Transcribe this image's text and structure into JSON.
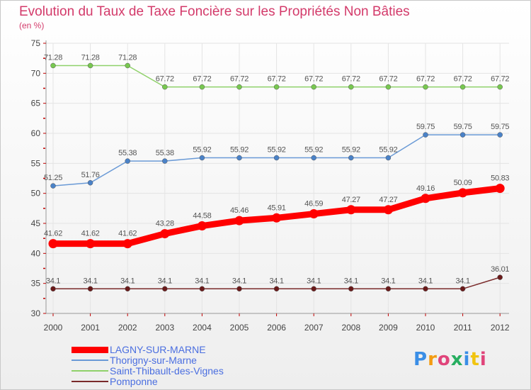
{
  "title": "Evolution du Taux de Taxe Foncière sur les Propriétés Non Bâties",
  "unit": "(en %)",
  "logo_text": "Proxiti",
  "colors": {
    "title": "#d33a6a",
    "axis": "#c00000",
    "grid": "#e4e4e4",
    "legend_text": "#4a6ee0"
  },
  "chart_data": {
    "type": "line",
    "title": "Evolution du Taux de Taxe Foncière sur les Propriétés Non Bâties",
    "ylabel": "(en %)",
    "xlabel": "",
    "x": [
      "2000",
      "2001",
      "2002",
      "2003",
      "2004",
      "2005",
      "2006",
      "2007",
      "2008",
      "2009",
      "2010",
      "2011",
      "2012"
    ],
    "ylim": [
      30,
      75
    ],
    "yticks": [
      30,
      35,
      40,
      45,
      50,
      55,
      60,
      65,
      70,
      75
    ],
    "grid": true,
    "legend_position": "bottom-left",
    "series": [
      {
        "name": "Saint-Thibault-des-Vignes",
        "color": "#8fd16a",
        "marker": "#78c850",
        "labels": [
          "71.28",
          "71.28",
          "71.28",
          "67.72",
          "67.72",
          "67.72",
          "67.72",
          "67.72",
          "67.72",
          "67.72",
          "67.72",
          "67.72",
          "67.72"
        ],
        "values": [
          71.28,
          71.28,
          71.28,
          67.72,
          67.72,
          67.72,
          67.72,
          67.72,
          67.72,
          67.72,
          67.72,
          67.72,
          67.72
        ]
      },
      {
        "name": "Thorigny-sur-Marne",
        "color": "#6a9ad6",
        "marker": "#4a82c8",
        "labels": [
          "51.25",
          "51.76",
          "55.38",
          "55.38",
          "55.92",
          "55.92",
          "55.92",
          "55.92",
          "55.92",
          "55.92",
          "59.75",
          "59.75",
          "59.75"
        ],
        "values": [
          51.25,
          51.76,
          55.38,
          55.38,
          55.92,
          55.92,
          55.92,
          55.92,
          55.92,
          55.92,
          59.75,
          59.75,
          59.75
        ]
      },
      {
        "name": "LAGNY-SUR-MARNE",
        "color": "#ff0000",
        "marker": "#ff0000",
        "bold": true,
        "labels": [
          "41.62",
          "41.62",
          "41.62",
          "43.28",
          "44.58",
          "45.46",
          "45.91",
          "46.59",
          "47.27",
          "47.27",
          "49.16",
          "50.09",
          "50.83"
        ],
        "values": [
          41.62,
          41.62,
          41.62,
          43.28,
          44.58,
          45.46,
          45.91,
          46.59,
          47.27,
          47.27,
          49.16,
          50.09,
          50.83
        ]
      },
      {
        "name": "Pomponne",
        "color": "#7a2a2a",
        "marker": "#6a1a1a",
        "labels": [
          "34.1",
          "34.1",
          "34.1",
          "34.1",
          "34.1",
          "34.1",
          "34.1",
          "34.1",
          "34.1",
          "34.1",
          "34.1",
          "34.1",
          "36.01"
        ],
        "values": [
          34.1,
          34.1,
          34.1,
          34.1,
          34.1,
          34.1,
          34.1,
          34.1,
          34.1,
          34.1,
          34.1,
          34.1,
          36.01
        ]
      }
    ],
    "legend_order": [
      "LAGNY-SUR-MARNE",
      "Thorigny-sur-Marne",
      "Saint-Thibault-des-Vignes",
      "Pomponne"
    ]
  }
}
